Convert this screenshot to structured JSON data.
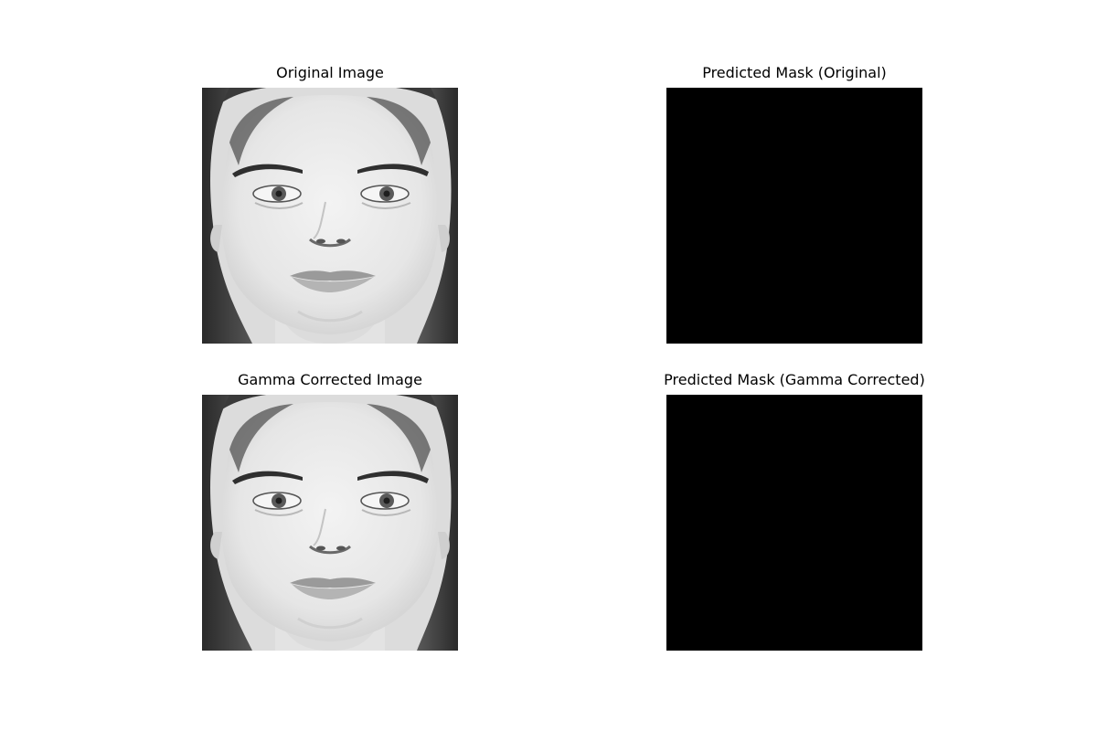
{
  "panels": {
    "original": {
      "title": "Original Image"
    },
    "mask_original": {
      "title": "Predicted Mask (Original)",
      "fill": "#000000"
    },
    "gamma": {
      "title": "Gamma Corrected Image"
    },
    "mask_gamma": {
      "title": "Predicted Mask (Gamma Corrected)",
      "fill": "#000000"
    }
  }
}
